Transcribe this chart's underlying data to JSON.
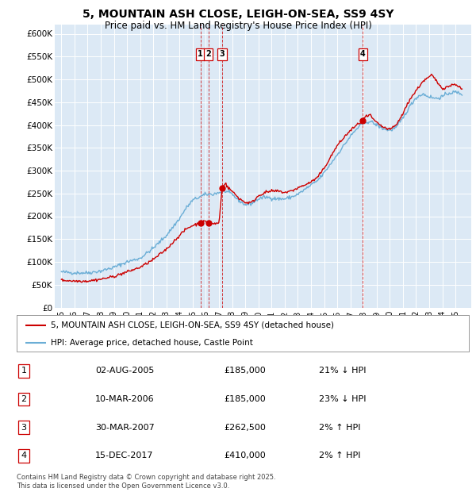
{
  "title": "5, MOUNTAIN ASH CLOSE, LEIGH-ON-SEA, SS9 4SY",
  "subtitle": "Price paid vs. HM Land Registry's House Price Index (HPI)",
  "legend_line1": "5, MOUNTAIN ASH CLOSE, LEIGH-ON-SEA, SS9 4SY (detached house)",
  "legend_line2": "HPI: Average price, detached house, Castle Point",
  "footer": "Contains HM Land Registry data © Crown copyright and database right 2025.\nThis data is licensed under the Open Government Licence v3.0.",
  "transactions": [
    {
      "num": 1,
      "date": "02-AUG-2005",
      "price": 185000,
      "pct": "21%",
      "dir": "↓",
      "year_x": 2005.58
    },
    {
      "num": 2,
      "date": "10-MAR-2006",
      "price": 185000,
      "pct": "23%",
      "dir": "↓",
      "year_x": 2006.19
    },
    {
      "num": 3,
      "date": "30-MAR-2007",
      "price": 262500,
      "pct": "2%",
      "dir": "↑",
      "year_x": 2007.24
    },
    {
      "num": 4,
      "date": "15-DEC-2017",
      "price": 410000,
      "pct": "2%",
      "dir": "↑",
      "year_x": 2017.95
    }
  ],
  "hpi_color": "#6baed6",
  "price_color": "#cc0000",
  "bg_color": "#dce9f5",
  "grid_color": "#ffffff",
  "ylim": [
    0,
    620000
  ],
  "yticks": [
    0,
    50000,
    100000,
    150000,
    200000,
    250000,
    300000,
    350000,
    400000,
    450000,
    500000,
    550000,
    600000
  ],
  "xlim_start": 1994.5,
  "xlim_end": 2026.2,
  "xticks": [
    1995,
    1996,
    1997,
    1998,
    1999,
    2000,
    2001,
    2002,
    2003,
    2004,
    2005,
    2006,
    2007,
    2008,
    2009,
    2010,
    2011,
    2012,
    2013,
    2014,
    2015,
    2016,
    2017,
    2018,
    2019,
    2020,
    2021,
    2022,
    2023,
    2024,
    2025
  ],
  "hpi_anchors": [
    [
      1995.0,
      78000
    ],
    [
      1995.5,
      77000
    ],
    [
      1996.0,
      76000
    ],
    [
      1997.0,
      76000
    ],
    [
      1998.0,
      80000
    ],
    [
      1999.0,
      88000
    ],
    [
      2000.0,
      100000
    ],
    [
      2001.0,
      108000
    ],
    [
      2002.0,
      130000
    ],
    [
      2003.0,
      158000
    ],
    [
      2004.0,
      195000
    ],
    [
      2004.5,
      218000
    ],
    [
      2005.0,
      235000
    ],
    [
      2005.5,
      242000
    ],
    [
      2006.0,
      248000
    ],
    [
      2006.5,
      248000
    ],
    [
      2007.0,
      252000
    ],
    [
      2007.5,
      255000
    ],
    [
      2008.0,
      248000
    ],
    [
      2008.5,
      235000
    ],
    [
      2009.0,
      225000
    ],
    [
      2009.5,
      228000
    ],
    [
      2010.0,
      238000
    ],
    [
      2010.5,
      242000
    ],
    [
      2011.0,
      240000
    ],
    [
      2011.5,
      238000
    ],
    [
      2012.0,
      238000
    ],
    [
      2012.5,
      242000
    ],
    [
      2013.0,
      248000
    ],
    [
      2013.5,
      258000
    ],
    [
      2014.0,
      268000
    ],
    [
      2014.5,
      278000
    ],
    [
      2015.0,
      295000
    ],
    [
      2015.5,
      315000
    ],
    [
      2016.0,
      335000
    ],
    [
      2016.5,
      355000
    ],
    [
      2017.0,
      375000
    ],
    [
      2017.5,
      392000
    ],
    [
      2018.0,
      405000
    ],
    [
      2018.5,
      408000
    ],
    [
      2019.0,
      400000
    ],
    [
      2019.5,
      392000
    ],
    [
      2020.0,
      388000
    ],
    [
      2020.5,
      395000
    ],
    [
      2021.0,
      415000
    ],
    [
      2021.5,
      440000
    ],
    [
      2022.0,
      460000
    ],
    [
      2022.5,
      468000
    ],
    [
      2023.0,
      462000
    ],
    [
      2023.5,
      458000
    ],
    [
      2024.0,
      462000
    ],
    [
      2024.5,
      470000
    ],
    [
      2025.0,
      472000
    ],
    [
      2025.5,
      468000
    ]
  ],
  "price_anchors": [
    [
      1995.0,
      60000
    ],
    [
      1995.5,
      59000
    ],
    [
      1996.0,
      58000
    ],
    [
      1997.0,
      58000
    ],
    [
      1998.0,
      62000
    ],
    [
      1999.0,
      68000
    ],
    [
      2000.0,
      78000
    ],
    [
      2001.0,
      88000
    ],
    [
      2002.0,
      105000
    ],
    [
      2003.0,
      128000
    ],
    [
      2004.0,
      158000
    ],
    [
      2004.5,
      172000
    ],
    [
      2005.0,
      180000
    ],
    [
      2005.58,
      185000
    ],
    [
      2005.8,
      188000
    ],
    [
      2006.0,
      188000
    ],
    [
      2006.19,
      185000
    ],
    [
      2006.5,
      183000
    ],
    [
      2007.0,
      185000
    ],
    [
      2007.24,
      262500
    ],
    [
      2007.5,
      275000
    ],
    [
      2007.6,
      265000
    ],
    [
      2008.0,
      255000
    ],
    [
      2008.5,
      240000
    ],
    [
      2009.0,
      230000
    ],
    [
      2009.5,
      230000
    ],
    [
      2010.0,
      245000
    ],
    [
      2010.5,
      252000
    ],
    [
      2011.0,
      255000
    ],
    [
      2011.5,
      255000
    ],
    [
      2012.0,
      252000
    ],
    [
      2012.5,
      255000
    ],
    [
      2013.0,
      262000
    ],
    [
      2013.5,
      268000
    ],
    [
      2014.0,
      275000
    ],
    [
      2014.5,
      285000
    ],
    [
      2015.0,
      305000
    ],
    [
      2015.5,
      330000
    ],
    [
      2016.0,
      355000
    ],
    [
      2016.5,
      372000
    ],
    [
      2017.0,
      388000
    ],
    [
      2017.5,
      400000
    ],
    [
      2017.95,
      410000
    ],
    [
      2018.0,
      415000
    ],
    [
      2018.5,
      422000
    ],
    [
      2018.8,
      410000
    ],
    [
      2019.0,
      405000
    ],
    [
      2019.5,
      395000
    ],
    [
      2020.0,
      390000
    ],
    [
      2020.5,
      400000
    ],
    [
      2021.0,
      425000
    ],
    [
      2021.5,
      455000
    ],
    [
      2022.0,
      475000
    ],
    [
      2022.5,
      495000
    ],
    [
      2023.0,
      505000
    ],
    [
      2023.2,
      510000
    ],
    [
      2023.5,
      498000
    ],
    [
      2024.0,
      480000
    ],
    [
      2024.5,
      485000
    ],
    [
      2025.0,
      490000
    ],
    [
      2025.5,
      478000
    ]
  ]
}
